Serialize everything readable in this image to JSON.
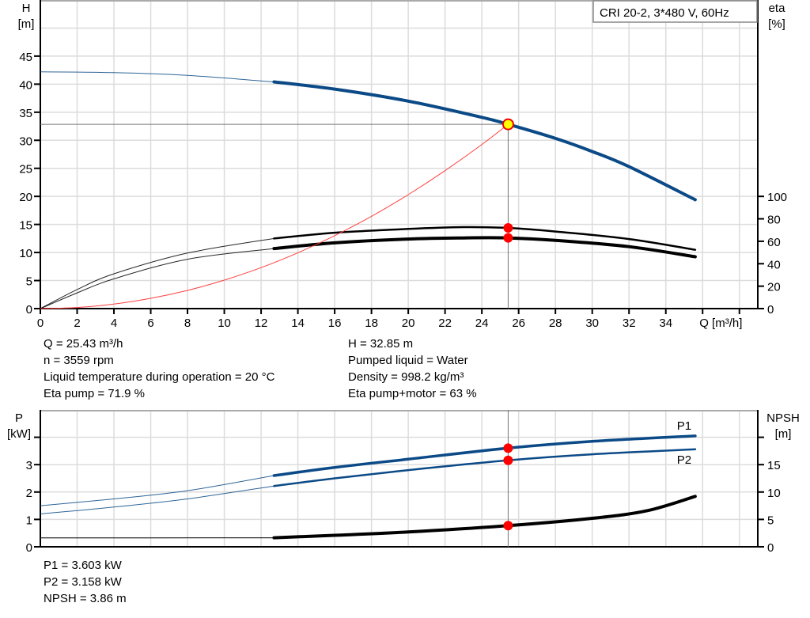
{
  "chart_data": [
    {
      "type": "line",
      "title": "CRI 20-2, 3*480 V, 60Hz",
      "xlabel": "Q [m³/h]",
      "ylabel": "H\n[m]",
      "ylabel_lines": [
        "H",
        "[m]"
      ],
      "y2label_lines": [
        "eta",
        "[%]"
      ],
      "xlim": [
        0,
        39
      ],
      "ylim": [
        0,
        55
      ],
      "y2lim": [
        0,
        275
      ],
      "xticks": [
        0,
        2,
        4,
        6,
        8,
        10,
        12,
        14,
        16,
        18,
        20,
        22,
        24,
        26,
        28,
        30,
        32,
        34
      ],
      "yticks": [
        0,
        5,
        10,
        15,
        20,
        25,
        30,
        35,
        40,
        45
      ],
      "y2ticks": [
        0,
        20,
        40,
        60,
        80,
        100
      ],
      "grid": true,
      "series": [
        {
          "axis": "left",
          "color": "#0b4a86",
          "thick_from": 12.7,
          "x": [
            0,
            4,
            8,
            12.7,
            16,
            20,
            24,
            25.43,
            28,
            30,
            32,
            35.6
          ],
          "y": [
            42.2,
            42.06,
            41.56,
            40.4,
            39.12,
            36.98,
            34.09,
            32.85,
            30.34,
            28.0,
            25.3,
            19.4
          ]
        },
        {
          "axis": "right",
          "color": "#000000",
          "thick_from": 12.7,
          "x": [
            0,
            2,
            4,
            8,
            12.7,
            16,
            20,
            23,
            25.43,
            28,
            32,
            35.6
          ],
          "y": [
            0,
            17,
            31,
            49.5,
            62.5,
            67.6,
            71,
            72.6,
            71.9,
            68.7,
            62,
            52.4
          ]
        },
        {
          "axis": "right",
          "color": "#000000",
          "thick_from": 12.7,
          "bold": true,
          "x": [
            0,
            2,
            4,
            8,
            12.7,
            16,
            20,
            23,
            25.43,
            28,
            32,
            35.6
          ],
          "y": [
            0,
            14,
            26.5,
            44,
            53.5,
            58.6,
            62,
            63,
            63,
            60.8,
            55.2,
            46.2
          ]
        },
        {
          "axis": "left",
          "color": "#ff4040",
          "type": "system-curve",
          "x": [
            0,
            2,
            4,
            6,
            8,
            10,
            12,
            14,
            16,
            18,
            20,
            22,
            24,
            25.43
          ],
          "y": [
            0,
            0.2,
            0.81,
            1.83,
            3.25,
            5.08,
            7.31,
            9.95,
            13.0,
            16.45,
            20.31,
            24.58,
            29.25,
            32.85
          ]
        }
      ],
      "operating_point": {
        "Q": 25.43,
        "H": 32.85,
        "eta_pump": 71.9,
        "eta_total": 63,
        "color": "#ffff00"
      }
    },
    {
      "type": "line",
      "xlim": [
        0,
        39
      ],
      "ylim": [
        0,
        5
      ],
      "y2lim": [
        0,
        25
      ],
      "ylabel_lines": [
        "P",
        "[kW]"
      ],
      "y2label_lines": [
        "NPSH",
        "[m]"
      ],
      "yticks": [
        0,
        1,
        2,
        3,
        4
      ],
      "ytick_labels": [
        "0",
        "1",
        "2",
        "3",
        ""
      ],
      "y2ticks": [
        0,
        5,
        10,
        15,
        20
      ],
      "y2tick_labels": [
        "0",
        "5",
        "10",
        "15",
        ""
      ],
      "grid": true,
      "series": [
        {
          "name": "P1",
          "axis": "left",
          "color": "#0b4a86",
          "thick_from": 12.7,
          "x": [
            0,
            4,
            8,
            12.7,
            16,
            20,
            25.43,
            30,
            35.6
          ],
          "y": [
            1.5,
            1.75,
            2.05,
            2.6,
            2.9,
            3.2,
            3.603,
            3.85,
            4.05
          ]
        },
        {
          "name": "P2",
          "axis": "left",
          "color": "#0b4a86",
          "thick_from": 12.7,
          "x": [
            0,
            4,
            8,
            12.7,
            16,
            20,
            25.43,
            30,
            35.6
          ],
          "y": [
            1.2,
            1.45,
            1.75,
            2.22,
            2.5,
            2.8,
            3.158,
            3.38,
            3.56
          ]
        },
        {
          "axis": "right",
          "color": "#000000",
          "thick_from": 12.7,
          "bold": true,
          "x": [
            0,
            6,
            12.7,
            16,
            20,
            25.43,
            30,
            33,
            35.6
          ],
          "y": [
            1.62,
            1.64,
            1.65,
            2.1,
            2.7,
            3.86,
            5.2,
            6.6,
            9.2
          ]
        }
      ],
      "operating_point": {
        "Q": 25.43,
        "P1": 3.603,
        "P2": 3.158,
        "NPSH": 3.86
      }
    }
  ],
  "readouts": {
    "left": [
      "Q = 25.43 m³/h",
      "n = 3559 rpm",
      "Liquid temperature during operation = 20 °C",
      "Eta pump = 71.9 %"
    ],
    "right": [
      "H = 32.85 m",
      "Pumped liquid = Water",
      "Density = 998.2 kg/m³",
      "Eta pump+motor = 63 %"
    ],
    "bottom": [
      "P1 = 3.603 kW",
      "P2 = 3.158 kW",
      "NPSH = 3.86 m"
    ]
  }
}
